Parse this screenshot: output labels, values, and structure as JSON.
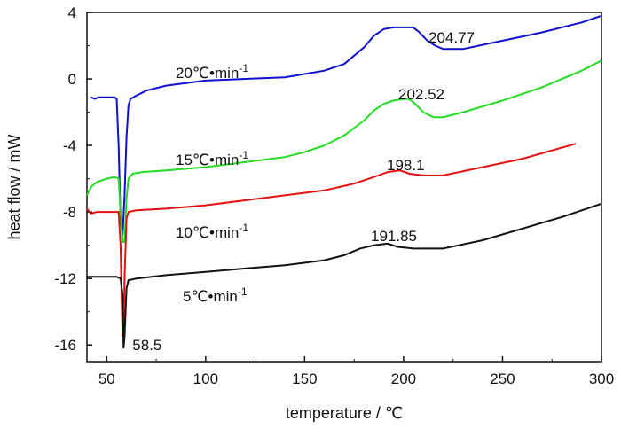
{
  "chart_data": {
    "type": "line",
    "title": "",
    "xlabel": "temperature / ℃",
    "ylabel": "heat flow / mW",
    "xlim": [
      40,
      300
    ],
    "ylim": [
      -17,
      4
    ],
    "xticks": [
      50,
      100,
      150,
      200,
      250,
      300
    ],
    "yticks": [
      4,
      0,
      -4,
      -8,
      -12,
      -16
    ],
    "grid": false,
    "series": [
      {
        "label": "20℃·min-1",
        "label_text": "20℃•min",
        "label_sup": "-1",
        "color": "#1010d0",
        "peak_label": "204.77",
        "points": [
          [
            42,
            -1.1
          ],
          [
            44,
            -1.2
          ],
          [
            46,
            -1.1
          ],
          [
            50,
            -1.1
          ],
          [
            54,
            -1.1
          ],
          [
            55,
            -1.2
          ],
          [
            56,
            -4
          ],
          [
            57,
            -8.5
          ],
          [
            58,
            -9.4
          ],
          [
            59,
            -7
          ],
          [
            60,
            -3.5
          ],
          [
            61,
            -1.6
          ],
          [
            62,
            -1.2
          ],
          [
            65,
            -1.0
          ],
          [
            70,
            -0.7
          ],
          [
            80,
            -0.4
          ],
          [
            100,
            -0.1
          ],
          [
            120,
            0.0
          ],
          [
            140,
            0.1
          ],
          [
            160,
            0.5
          ],
          [
            170,
            0.9
          ],
          [
            180,
            1.9
          ],
          [
            185,
            2.6
          ],
          [
            190,
            3.0
          ],
          [
            195,
            3.1
          ],
          [
            200,
            3.1
          ],
          [
            204.77,
            3.1
          ],
          [
            208,
            2.8
          ],
          [
            212,
            2.3
          ],
          [
            216,
            2.0
          ],
          [
            220,
            1.8
          ],
          [
            230,
            1.8
          ],
          [
            250,
            2.3
          ],
          [
            270,
            2.8
          ],
          [
            290,
            3.4
          ],
          [
            300,
            3.8
          ]
        ]
      },
      {
        "label": "15℃·min-1",
        "label_text": "15℃•min",
        "label_sup": "-1",
        "color": "#22dd22",
        "peak_label": "202.52",
        "points": [
          [
            40,
            -7
          ],
          [
            42,
            -6.5
          ],
          [
            45,
            -6.2
          ],
          [
            50,
            -6.0
          ],
          [
            54,
            -5.9
          ],
          [
            56,
            -6.0
          ],
          [
            57,
            -8
          ],
          [
            58,
            -9.8
          ],
          [
            59,
            -9.8
          ],
          [
            60,
            -7.2
          ],
          [
            61,
            -6.0
          ],
          [
            63,
            -5.7
          ],
          [
            68,
            -5.6
          ],
          [
            80,
            -5.5
          ],
          [
            100,
            -5.3
          ],
          [
            120,
            -5.0
          ],
          [
            140,
            -4.7
          ],
          [
            150,
            -4.4
          ],
          [
            160,
            -4.0
          ],
          [
            170,
            -3.4
          ],
          [
            180,
            -2.5
          ],
          [
            185,
            -1.9
          ],
          [
            190,
            -1.5
          ],
          [
            195,
            -1.3
          ],
          [
            200,
            -1.2
          ],
          [
            202.52,
            -1.2
          ],
          [
            205,
            -1.4
          ],
          [
            210,
            -2.0
          ],
          [
            215,
            -2.3
          ],
          [
            220,
            -2.3
          ],
          [
            230,
            -2.0
          ],
          [
            250,
            -1.3
          ],
          [
            270,
            -0.5
          ],
          [
            290,
            0.5
          ],
          [
            300,
            1.1
          ]
        ]
      },
      {
        "label": "10℃·min-1",
        "label_text": "10℃•min",
        "label_sup": "-1",
        "color": "#e81010",
        "peak_label": "198.1",
        "points": [
          [
            40,
            -7.8
          ],
          [
            42,
            -8.1
          ],
          [
            45,
            -8.0
          ],
          [
            50,
            -8.0
          ],
          [
            56,
            -8.0
          ],
          [
            57,
            -10
          ],
          [
            57.5,
            -13
          ],
          [
            58,
            -15.5
          ],
          [
            58.5,
            -15.2
          ],
          [
            59,
            -12
          ],
          [
            60,
            -8.4
          ],
          [
            61,
            -8.0
          ],
          [
            65,
            -7.9
          ],
          [
            80,
            -7.8
          ],
          [
            100,
            -7.6
          ],
          [
            120,
            -7.3
          ],
          [
            140,
            -7.0
          ],
          [
            160,
            -6.7
          ],
          [
            175,
            -6.3
          ],
          [
            185,
            -5.9
          ],
          [
            192,
            -5.6
          ],
          [
            198.1,
            -5.5
          ],
          [
            203,
            -5.7
          ],
          [
            210,
            -5.8
          ],
          [
            220,
            -5.8
          ],
          [
            240,
            -5.3
          ],
          [
            260,
            -4.8
          ],
          [
            275,
            -4.3
          ],
          [
            287,
            -3.9
          ]
        ]
      },
      {
        "label": "5℃·min-1",
        "label_text": "5℃•min",
        "label_sup": "-1",
        "color": "#111111",
        "peak_label": "191.85",
        "points": [
          [
            40,
            -11.9
          ],
          [
            45,
            -11.9
          ],
          [
            50,
            -11.9
          ],
          [
            55,
            -11.9
          ],
          [
            57,
            -12.0
          ],
          [
            58,
            -13
          ],
          [
            58.5,
            -16.2
          ],
          [
            59,
            -15.5
          ],
          [
            60,
            -12.6
          ],
          [
            61,
            -12.1
          ],
          [
            65,
            -12.0
          ],
          [
            80,
            -11.8
          ],
          [
            100,
            -11.6
          ],
          [
            120,
            -11.4
          ],
          [
            140,
            -11.2
          ],
          [
            160,
            -10.9
          ],
          [
            170,
            -10.6
          ],
          [
            178,
            -10.2
          ],
          [
            185,
            -10.0
          ],
          [
            191.85,
            -9.9
          ],
          [
            197,
            -10.1
          ],
          [
            205,
            -10.2
          ],
          [
            220,
            -10.2
          ],
          [
            240,
            -9.7
          ],
          [
            260,
            -9.0
          ],
          [
            280,
            -8.3
          ],
          [
            300,
            -7.5
          ]
        ]
      }
    ],
    "annotations": [
      {
        "text": "58.5",
        "x": 58.5,
        "y": -16
      }
    ]
  }
}
